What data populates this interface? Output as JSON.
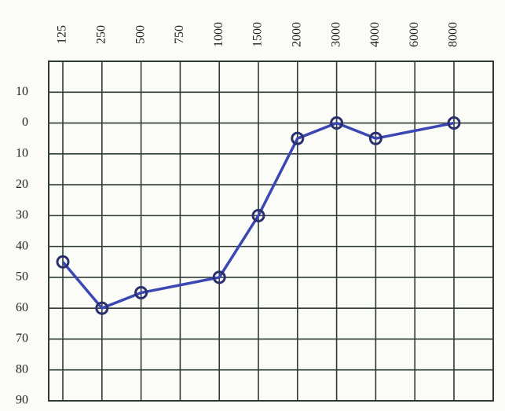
{
  "chart_data": {
    "type": "line",
    "xticks": [
      125,
      250,
      500,
      750,
      1000,
      1500,
      2000,
      3000,
      4000,
      6000,
      8000
    ],
    "x": [
      125,
      250,
      500,
      1000,
      1500,
      2000,
      3000,
      4000,
      8000
    ],
    "series": [
      {
        "color": "#3b47b3",
        "values": [
          45,
          60,
          55,
          50,
          30,
          5,
          0,
          5,
          0
        ]
      }
    ],
    "ylim": [
      -20,
      90
    ],
    "yticks": [
      {
        "value": -10,
        "label": "10"
      },
      0,
      10,
      20,
      30,
      40,
      50,
      60,
      70,
      80,
      90
    ],
    "y_inverted": true,
    "grid": true
  }
}
